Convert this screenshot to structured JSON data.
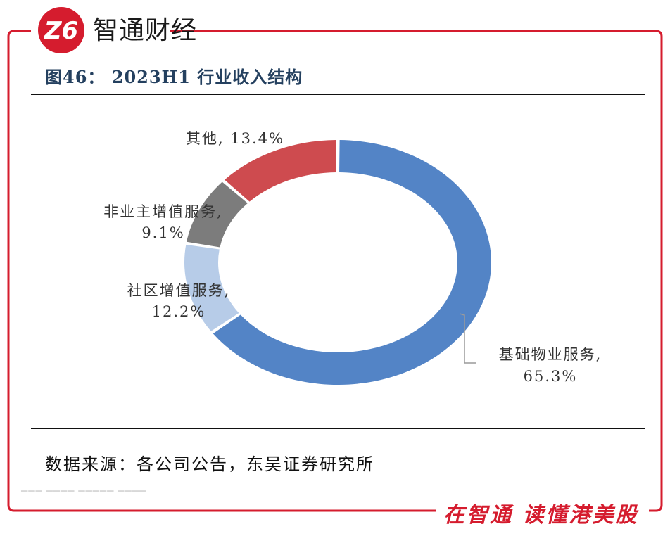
{
  "brand": {
    "name": "智通财经",
    "slogan": "在智通  读懂港美股",
    "accent_color": "#d51c2e"
  },
  "figure": {
    "title": "图46：  2023H1 行业收入结构"
  },
  "source": "数据来源：各公司公告，东吴证券研究所",
  "chart_data": {
    "type": "pie",
    "donut": true,
    "slices": [
      {
        "label": "基础物业服务,",
        "value_label": "65.3%",
        "value": 65.3,
        "color": "#5384c6"
      },
      {
        "label": "社区增值服务,",
        "value_label": "12.2%",
        "value": 12.2,
        "color": "#b7cce8"
      },
      {
        "label": "非业主增值服务,",
        "value_label": "9.1%",
        "value": 9.1,
        "color": "#7c7c7c"
      },
      {
        "label": "其他,",
        "value_label": "13.4%",
        "value": 13.4,
        "color": "#ce4b4f"
      }
    ]
  }
}
